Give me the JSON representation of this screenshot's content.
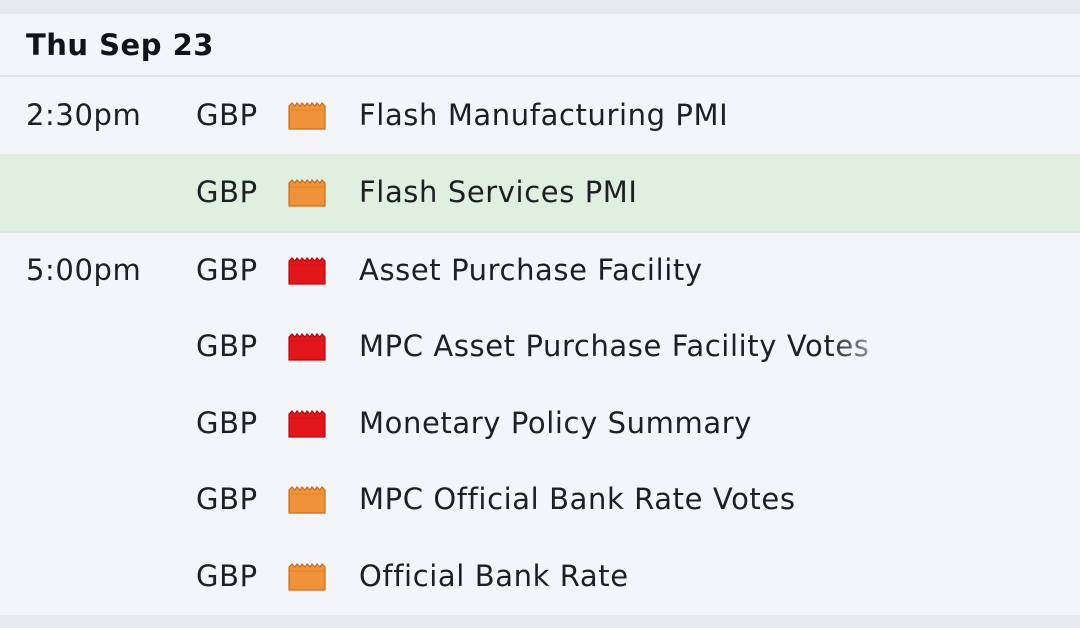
{
  "day": {
    "title": "Thu Sep 23"
  },
  "colors": {
    "impact_medium": "#f0923a",
    "impact_high": "#e3161b",
    "highlight_row": "#e1efe1"
  },
  "events": [
    {
      "time": "2:30pm",
      "currency": "GBP",
      "impact": "medium",
      "impact_icon": "factory-impact-icon",
      "name": "Flash Manufacturing PMI"
    },
    {
      "time": "",
      "currency": "GBP",
      "impact": "medium",
      "impact_icon": "factory-impact-icon",
      "name": "Flash Services PMI",
      "highlighted": true
    },
    {
      "time": "5:00pm",
      "currency": "GBP",
      "impact": "high",
      "impact_icon": "factory-impact-icon",
      "name": "Asset Purchase Facility"
    },
    {
      "time": "",
      "currency": "GBP",
      "impact": "high",
      "impact_icon": "factory-impact-icon",
      "name": "MPC Asset Purchase Facility Votes"
    },
    {
      "time": "",
      "currency": "GBP",
      "impact": "high",
      "impact_icon": "factory-impact-icon",
      "name": "Monetary Policy Summary"
    },
    {
      "time": "",
      "currency": "GBP",
      "impact": "medium",
      "impact_icon": "factory-impact-icon",
      "name": "MPC Official Bank Rate Votes"
    },
    {
      "time": "",
      "currency": "GBP",
      "impact": "medium",
      "impact_icon": "factory-impact-icon",
      "name": "Official Bank Rate"
    }
  ]
}
